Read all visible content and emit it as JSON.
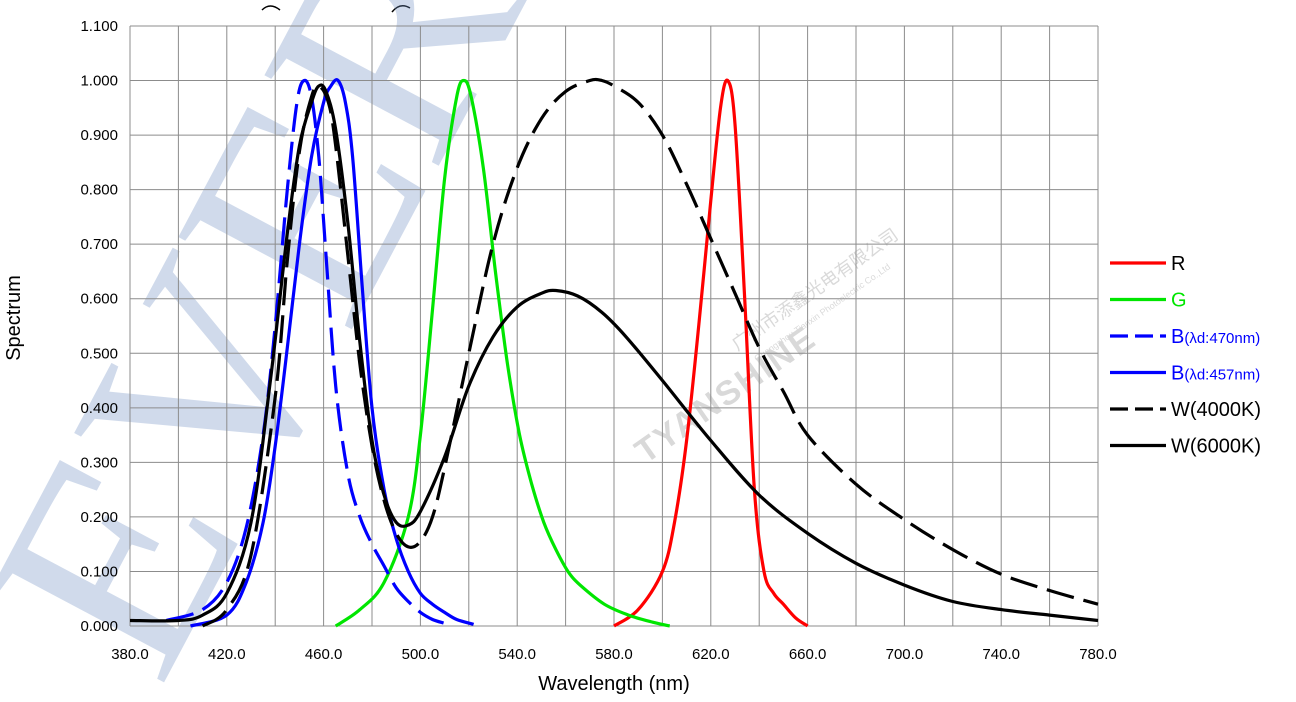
{
  "chart_data": {
    "type": "line",
    "xlabel": "Wavelength (nm)",
    "ylabel": "Spectrum",
    "xlim": [
      380,
      780
    ],
    "ylim": [
      0,
      1.1
    ],
    "grid": true,
    "legend_position": "right",
    "x_ticks": [
      "380.0",
      "420.0",
      "460.0",
      "500.0",
      "540.0",
      "580.0",
      "620.0",
      "660.0",
      "700.0",
      "740.0",
      "780.0"
    ],
    "y_ticks": [
      "0.000",
      "0.100",
      "0.200",
      "0.300",
      "0.400",
      "0.500",
      "0.600",
      "0.700",
      "0.800",
      "0.900",
      "1.000",
      "1.100"
    ],
    "series": [
      {
        "name": "R",
        "name_main": "R",
        "name_sub": "",
        "color": "#ff0000",
        "dash": "solid",
        "legend_text_color": "#000000",
        "x": [
          580,
          590,
          600,
          605,
          610,
          615,
          620,
          624,
          627,
          630,
          634,
          638,
          642,
          646,
          650,
          655,
          660
        ],
        "y": [
          0.0,
          0.03,
          0.1,
          0.19,
          0.34,
          0.55,
          0.78,
          0.95,
          1.0,
          0.92,
          0.6,
          0.25,
          0.1,
          0.06,
          0.04,
          0.015,
          0.0
        ]
      },
      {
        "name": "G",
        "name_main": "G",
        "name_sub": "",
        "color": "#00e600",
        "dash": "solid",
        "legend_text_color": "#00e600",
        "x": [
          465,
          475,
          485,
          495,
          500,
          505,
          510,
          515,
          518,
          521,
          526,
          531,
          536,
          541,
          546,
          551,
          556,
          561,
          566,
          576,
          586,
          596,
          603
        ],
        "y": [
          0.0,
          0.03,
          0.08,
          0.2,
          0.35,
          0.58,
          0.82,
          0.97,
          1.0,
          0.97,
          0.84,
          0.65,
          0.48,
          0.35,
          0.26,
          0.19,
          0.14,
          0.1,
          0.075,
          0.04,
          0.02,
          0.007,
          0.0
        ]
      },
      {
        "name": "B(λd:470nm)",
        "name_main": "B",
        "name_sub": "(λd:470nm)",
        "color": "#0000ff",
        "dash": "long",
        "legend_text_color": "#0000ff",
        "x": [
          395,
          410,
          420,
          428,
          435,
          440,
          445,
          449,
          452,
          455,
          458,
          461,
          465,
          470,
          475,
          480,
          485,
          490,
          495,
          500,
          505,
          510
        ],
        "y": [
          0.01,
          0.03,
          0.08,
          0.18,
          0.35,
          0.55,
          0.8,
          0.96,
          1.0,
          0.97,
          0.86,
          0.68,
          0.44,
          0.28,
          0.2,
          0.15,
          0.11,
          0.07,
          0.045,
          0.025,
          0.012,
          0.005
        ]
      },
      {
        "name": "B(λd:457nm)",
        "name_main": "B",
        "name_sub": "(λd:457nm)",
        "color": "#0000ff",
        "dash": "solid",
        "legend_text_color": "#0000ff",
        "x": [
          405,
          420,
          428,
          435,
          440,
          445,
          450,
          455,
          460,
          463,
          466,
          469,
          472,
          476,
          480,
          485,
          490,
          495,
          500,
          505,
          510,
          515,
          522
        ],
        "y": [
          0.0,
          0.02,
          0.08,
          0.19,
          0.33,
          0.51,
          0.7,
          0.86,
          0.96,
          0.99,
          1.0,
          0.96,
          0.86,
          0.62,
          0.4,
          0.25,
          0.16,
          0.1,
          0.06,
          0.04,
          0.025,
          0.012,
          0.003
        ]
      },
      {
        "name": "W(4000K)",
        "name_main": "W(4000K)",
        "name_sub": "",
        "color": "#000000",
        "dash": "long",
        "legend_text_color": "#000000",
        "x": [
          410,
          420,
          430,
          440,
          445,
          450,
          455,
          458,
          462,
          465,
          470,
          475,
          480,
          485,
          490,
          495,
          500,
          505,
          510,
          520,
          530,
          540,
          550,
          560,
          570,
          575,
          580,
          590,
          600,
          610,
          620,
          630,
          640,
          650,
          660,
          680,
          700,
          720,
          740,
          760,
          780
        ],
        "y": [
          0.0,
          0.03,
          0.13,
          0.42,
          0.67,
          0.87,
          0.97,
          0.99,
          0.96,
          0.88,
          0.68,
          0.48,
          0.33,
          0.23,
          0.17,
          0.145,
          0.155,
          0.2,
          0.29,
          0.5,
          0.7,
          0.84,
          0.93,
          0.98,
          1.0,
          1.0,
          0.99,
          0.96,
          0.9,
          0.81,
          0.71,
          0.61,
          0.51,
          0.43,
          0.35,
          0.26,
          0.195,
          0.14,
          0.095,
          0.065,
          0.04
        ]
      },
      {
        "name": "W(6000K)",
        "name_main": "W(6000K)",
        "name_sub": "",
        "color": "#000000",
        "dash": "solid",
        "legend_text_color": "#000000",
        "x": [
          380,
          400,
          410,
          420,
          430,
          438,
          445,
          450,
          455,
          458,
          461,
          465,
          470,
          475,
          480,
          485,
          490,
          495,
          500,
          510,
          520,
          530,
          540,
          550,
          556,
          565,
          575,
          585,
          600,
          620,
          640,
          660,
          680,
          700,
          720,
          740,
          760,
          780
        ],
        "y": [
          0.01,
          0.01,
          0.02,
          0.06,
          0.19,
          0.45,
          0.72,
          0.88,
          0.96,
          0.99,
          0.98,
          0.91,
          0.74,
          0.52,
          0.34,
          0.24,
          0.19,
          0.185,
          0.21,
          0.31,
          0.44,
          0.53,
          0.585,
          0.61,
          0.615,
          0.605,
          0.575,
          0.53,
          0.45,
          0.34,
          0.24,
          0.17,
          0.115,
          0.075,
          0.045,
          0.03,
          0.02,
          0.01
        ]
      }
    ]
  },
  "decor": {
    "watermark_text": "EVERLIGHT",
    "stamp_text": "TYANSHINE",
    "stamp_cn": "广州市添鑫光电有限公司",
    "stamp_en": "Guangzhou Tianxin Photoelectric Co.,Ltd"
  }
}
